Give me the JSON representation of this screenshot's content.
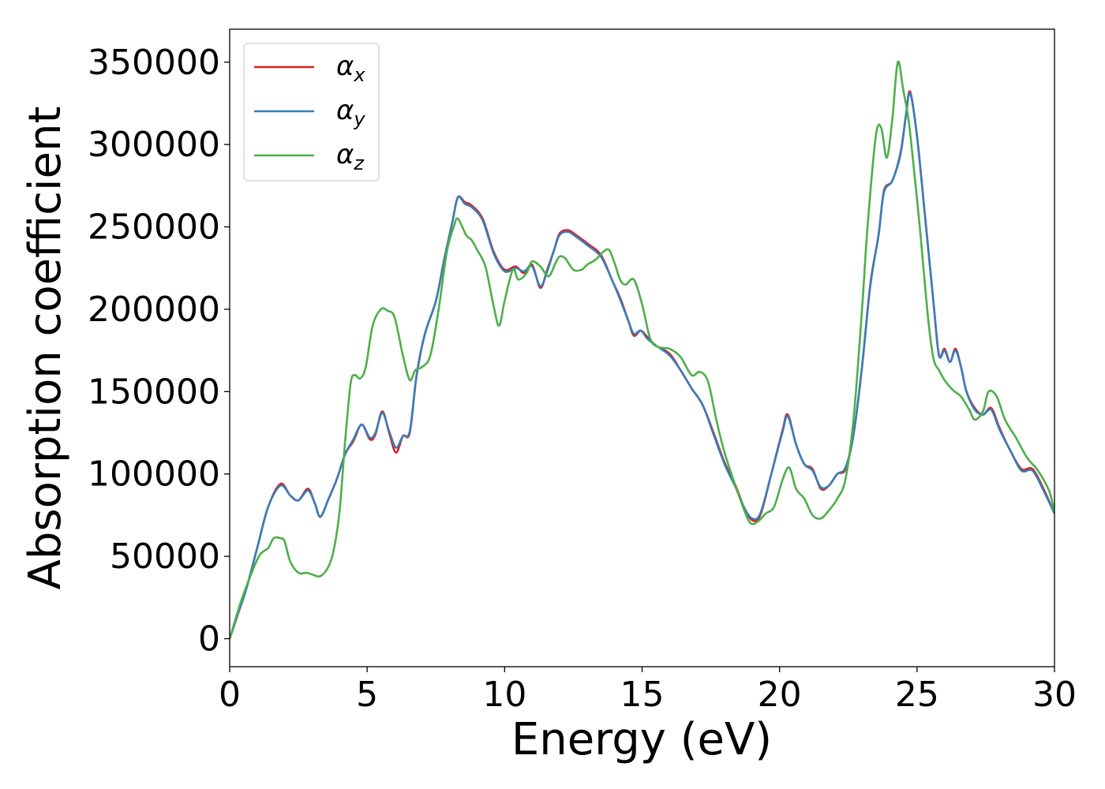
{
  "chart_data": {
    "type": "line",
    "title": "",
    "xlabel": "Energy (eV)",
    "ylabel": "Absorption coefficient",
    "xlim": [
      0,
      30
    ],
    "ylim": [
      -17000,
      370000
    ],
    "xticks": [
      0,
      5,
      10,
      15,
      20,
      25,
      30
    ],
    "xtick_labels": [
      "0",
      "5",
      "10",
      "15",
      "20",
      "25",
      "30"
    ],
    "yticks": [
      0,
      50000,
      100000,
      150000,
      200000,
      250000,
      300000,
      350000
    ],
    "ytick_labels": [
      "0",
      "50000",
      "100000",
      "150000",
      "200000",
      "250000",
      "300000",
      "350000"
    ],
    "grid": false,
    "legend_position": "top-left",
    "series": [
      {
        "name": "α",
        "subscript": "x",
        "color": "#e41a1c",
        "x": [
          0,
          0.3,
          0.6,
          1.0,
          1.4,
          1.85,
          2.2,
          2.5,
          2.85,
          3.1,
          3.3,
          3.6,
          3.9,
          4.2,
          4.5,
          4.8,
          5.1,
          5.3,
          5.55,
          5.8,
          6.05,
          6.3,
          6.55,
          6.8,
          7.1,
          7.5,
          7.8,
          8.1,
          8.3,
          8.55,
          8.8,
          9.2,
          9.6,
          10.0,
          10.4,
          10.7,
          11.0,
          11.3,
          11.55,
          11.8,
          12.0,
          12.3,
          12.6,
          13.0,
          13.5,
          13.9,
          14.2,
          14.5,
          14.7,
          14.95,
          15.2,
          15.5,
          16.0,
          16.4,
          16.8,
          17.2,
          17.6,
          18.0,
          18.4,
          18.7,
          19.0,
          19.3,
          19.7,
          20.1,
          20.3,
          20.6,
          20.9,
          21.2,
          21.5,
          21.8,
          22.1,
          22.4,
          22.7,
          23.0,
          23.3,
          23.6,
          23.8,
          24.1,
          24.4,
          24.6,
          24.75,
          25.0,
          25.3,
          25.6,
          25.8,
          26.0,
          26.2,
          26.4,
          26.6,
          26.8,
          27.1,
          27.4,
          27.7,
          28.0,
          28.4,
          28.8,
          29.2,
          29.6,
          30.0
        ],
        "y": [
          0,
          15000,
          30000,
          55000,
          80000,
          94000,
          87000,
          84000,
          91000,
          82000,
          74000,
          85000,
          97000,
          112000,
          120000,
          130000,
          121000,
          124000,
          138000,
          125000,
          113000,
          123000,
          125000,
          160000,
          185000,
          205000,
          230000,
          253000,
          268000,
          265000,
          263000,
          255000,
          235000,
          224000,
          226000,
          222000,
          227000,
          213000,
          224000,
          236000,
          246000,
          248000,
          245000,
          240000,
          233000,
          218000,
          207000,
          193000,
          184000,
          187000,
          183000,
          178000,
          173000,
          163000,
          152000,
          142000,
          125000,
          107000,
          93000,
          80000,
          72000,
          75000,
          100000,
          126000,
          136000,
          118000,
          106000,
          103000,
          91000,
          93000,
          100000,
          103000,
          125000,
          165000,
          215000,
          245000,
          272000,
          278000,
          295000,
          318000,
          332000,
          305000,
          255000,
          204000,
          172000,
          176000,
          168000,
          176000,
          165000,
          150000,
          140000,
          136000,
          140000,
          128000,
          114000,
          103000,
          103000,
          91000,
          76000
        ]
      },
      {
        "name": "α",
        "subscript": "y",
        "color": "#377eb8",
        "x": [
          0,
          0.3,
          0.6,
          1.0,
          1.4,
          1.85,
          2.2,
          2.5,
          2.85,
          3.1,
          3.3,
          3.6,
          3.9,
          4.2,
          4.5,
          4.8,
          5.1,
          5.3,
          5.55,
          5.8,
          6.05,
          6.3,
          6.55,
          6.8,
          7.1,
          7.5,
          7.8,
          8.1,
          8.3,
          8.55,
          8.8,
          9.2,
          9.6,
          10.0,
          10.4,
          10.7,
          11.0,
          11.3,
          11.55,
          11.8,
          12.0,
          12.3,
          12.6,
          13.0,
          13.5,
          13.9,
          14.2,
          14.5,
          14.7,
          14.95,
          15.2,
          15.5,
          16.0,
          16.4,
          16.8,
          17.2,
          17.6,
          18.0,
          18.4,
          18.7,
          19.0,
          19.3,
          19.7,
          20.1,
          20.3,
          20.6,
          20.9,
          21.2,
          21.5,
          21.8,
          22.1,
          22.4,
          22.7,
          23.0,
          23.3,
          23.6,
          23.8,
          24.1,
          24.4,
          24.6,
          24.75,
          25.0,
          25.3,
          25.6,
          25.8,
          26.0,
          26.2,
          26.4,
          26.6,
          26.8,
          27.1,
          27.4,
          27.7,
          28.0,
          28.4,
          28.8,
          29.2,
          29.6,
          30.0
        ],
        "y": [
          0,
          15000,
          30000,
          55000,
          80000,
          93000,
          87000,
          84000,
          90000,
          82000,
          74000,
          85000,
          97000,
          112000,
          121000,
          130000,
          122000,
          125000,
          137000,
          126000,
          116000,
          123000,
          126000,
          160000,
          185000,
          205000,
          230000,
          253000,
          268000,
          264000,
          262000,
          254000,
          234000,
          223000,
          225000,
          223000,
          226000,
          214000,
          223000,
          236000,
          245000,
          247000,
          244000,
          239000,
          232000,
          218000,
          206000,
          193000,
          185000,
          187000,
          182000,
          178000,
          172000,
          163000,
          152000,
          142000,
          124000,
          106000,
          92000,
          80000,
          73000,
          76000,
          100000,
          125000,
          135000,
          118000,
          106000,
          102000,
          92000,
          93000,
          100000,
          104000,
          125000,
          165000,
          214000,
          245000,
          271000,
          278000,
          294000,
          318000,
          331000,
          305000,
          255000,
          204000,
          172000,
          175000,
          168000,
          175000,
          165000,
          150000,
          139000,
          136000,
          139000,
          127000,
          114000,
          102000,
          102000,
          90000,
          76000
        ]
      },
      {
        "name": "α",
        "subscript": "z",
        "color": "#4daf4a",
        "x": [
          0,
          0.4,
          0.8,
          1.1,
          1.4,
          1.6,
          1.85,
          2.0,
          2.2,
          2.5,
          2.8,
          3.0,
          3.3,
          3.6,
          3.8,
          4.0,
          4.2,
          4.4,
          4.55,
          4.75,
          4.95,
          5.2,
          5.5,
          5.75,
          6.0,
          6.3,
          6.55,
          6.75,
          7.0,
          7.3,
          7.6,
          7.9,
          8.15,
          8.3,
          8.6,
          8.8,
          9.0,
          9.3,
          9.6,
          9.8,
          10.0,
          10.3,
          10.5,
          10.8,
          11.0,
          11.3,
          11.6,
          11.85,
          12.0,
          12.2,
          12.5,
          12.8,
          13.0,
          13.3,
          13.6,
          13.8,
          14.0,
          14.2,
          14.4,
          14.7,
          15.0,
          15.3,
          15.6,
          16.0,
          16.4,
          16.8,
          17.1,
          17.4,
          17.7,
          18.0,
          18.5,
          18.9,
          19.2,
          19.5,
          19.8,
          20.1,
          20.35,
          20.6,
          20.9,
          21.2,
          21.5,
          21.8,
          22.1,
          22.4,
          22.7,
          23.0,
          23.2,
          23.5,
          23.7,
          23.9,
          24.1,
          24.3,
          24.5,
          24.7,
          24.9,
          25.1,
          25.4,
          25.6,
          25.8,
          26.0,
          26.3,
          26.6,
          26.9,
          27.1,
          27.4,
          27.6,
          27.9,
          28.2,
          28.6,
          29.0,
          29.4,
          29.8,
          30.0
        ],
        "y": [
          0,
          22000,
          40000,
          51000,
          55000,
          61000,
          61000,
          59000,
          47000,
          40000,
          40000,
          39000,
          38000,
          44000,
          55000,
          78000,
          120000,
          155000,
          160000,
          158000,
          165000,
          190000,
          200000,
          199000,
          195000,
          172000,
          157000,
          163000,
          165000,
          172000,
          200000,
          235000,
          250000,
          255000,
          245000,
          242000,
          236000,
          226000,
          202000,
          190000,
          205000,
          224000,
          218000,
          222000,
          229000,
          226000,
          220000,
          228000,
          232000,
          231000,
          224000,
          224000,
          227000,
          230000,
          235000,
          236000,
          228000,
          218000,
          215000,
          218000,
          203000,
          182000,
          177000,
          176000,
          171000,
          160000,
          162000,
          156000,
          133000,
          113000,
          88000,
          71000,
          71000,
          76000,
          80000,
          96000,
          104000,
          91000,
          85000,
          75000,
          73000,
          78000,
          85000,
          97000,
          135000,
          200000,
          250000,
          305000,
          310000,
          292000,
          315000,
          350000,
          333000,
          314000,
          283000,
          250000,
          195000,
          170000,
          163000,
          157000,
          151000,
          147000,
          139000,
          133000,
          138000,
          150000,
          147000,
          133000,
          122000,
          110000,
          102000,
          90000,
          77000
        ]
      }
    ]
  }
}
